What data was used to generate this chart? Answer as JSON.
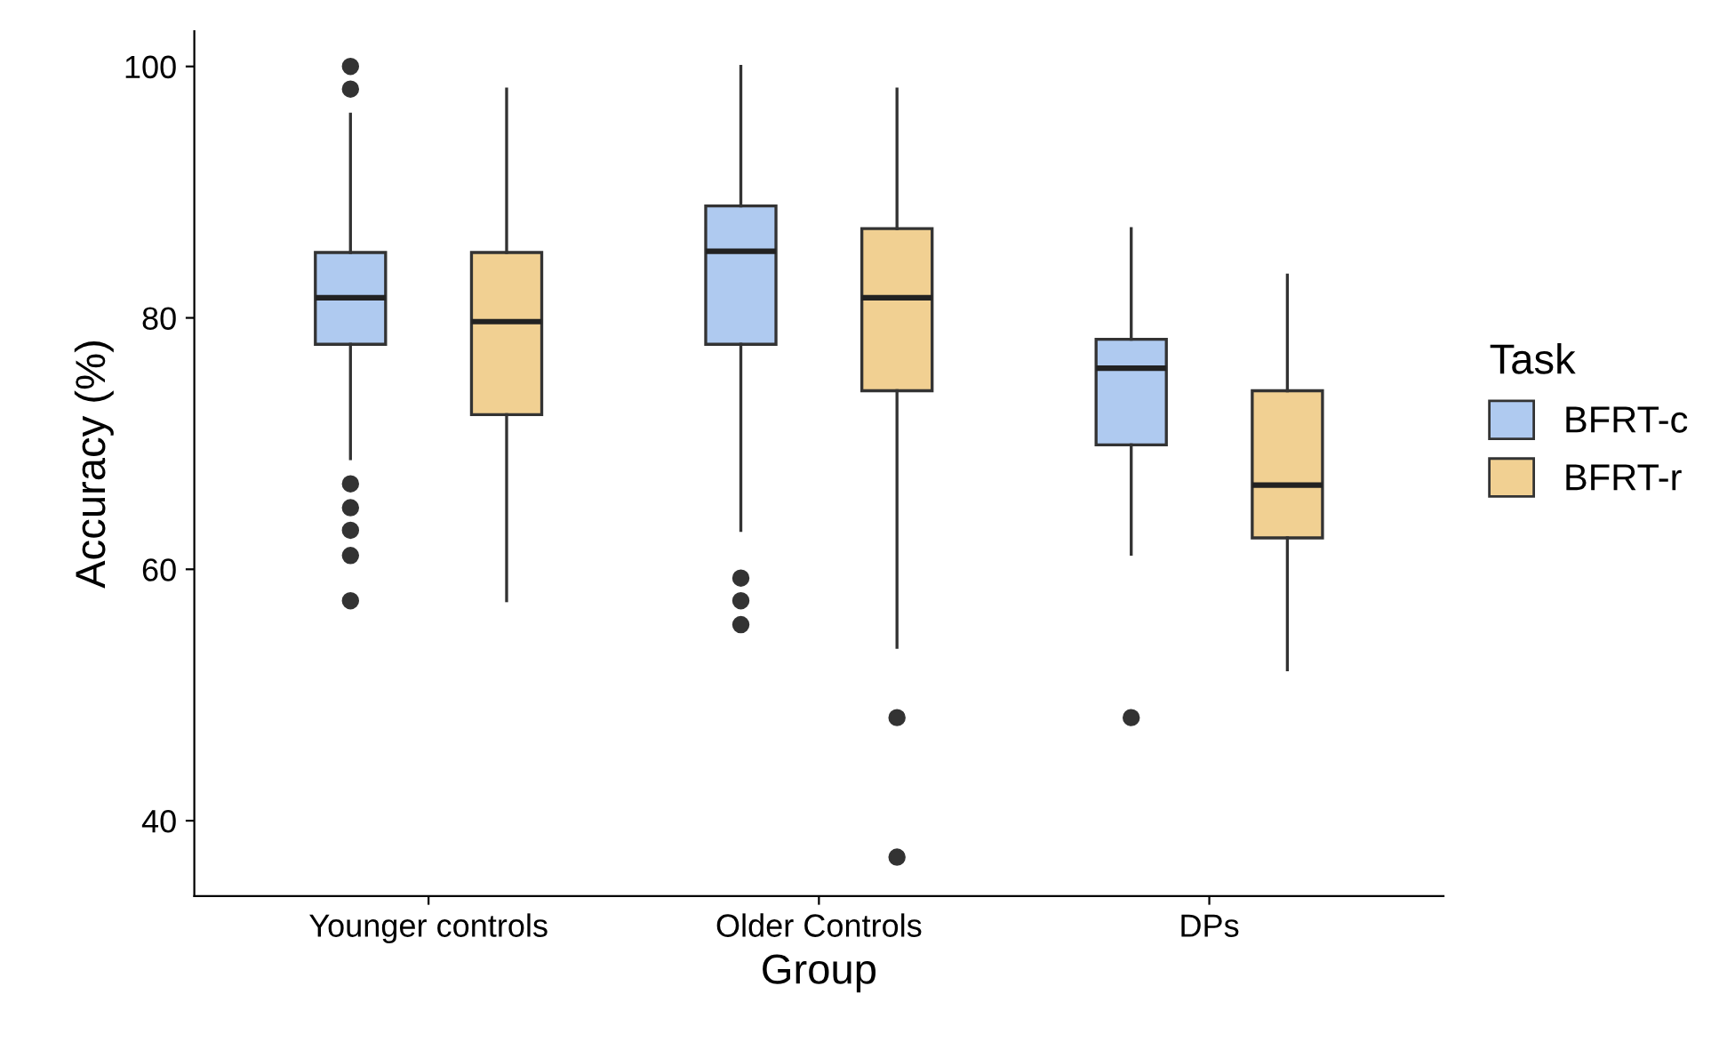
{
  "chart_data": {
    "type": "box",
    "xlabel": "Group",
    "ylabel": "Accuracy (%)",
    "legend_title": "Task",
    "legend": "right",
    "categories": [
      "Younger controls",
      "Older Controls",
      "DPs"
    ],
    "ylim": [
      34,
      102.8
    ],
    "yticks": [
      40,
      60,
      80,
      100
    ],
    "grid": false,
    "series": [
      {
        "name": "BFRT-c",
        "color": "#7aa6e6",
        "boxes": [
          {
            "low": 68.8,
            "q1": 77.9,
            "median": 81.6,
            "q3": 85.2,
            "high": 96.2,
            "outliers": [
              100,
              98.2,
              66.8,
              64.9,
              63.1,
              61.1,
              57.5
            ]
          },
          {
            "low": 63.1,
            "q1": 77.9,
            "median": 85.3,
            "q3": 88.9,
            "high": 100,
            "outliers": [
              59.3,
              57.5,
              55.6
            ]
          },
          {
            "low": 61.2,
            "q1": 69.9,
            "median": 76.0,
            "q3": 78.3,
            "high": 87.1,
            "outliers": [
              48.2
            ]
          }
        ]
      },
      {
        "name": "BFRT-r",
        "color": "#e8b04a",
        "boxes": [
          {
            "low": 57.5,
            "q1": 72.3,
            "median": 79.7,
            "q3": 85.2,
            "high": 98.2
          },
          {
            "low": 53.8,
            "q1": 74.2,
            "median": 81.6,
            "q3": 87.1,
            "high": 98.2,
            "outliers": [
              48.2,
              37.1
            ]
          },
          {
            "low": 52.0,
            "q1": 62.5,
            "median": 66.7,
            "q3": 74.2,
            "high": 83.4
          }
        ]
      }
    ]
  }
}
